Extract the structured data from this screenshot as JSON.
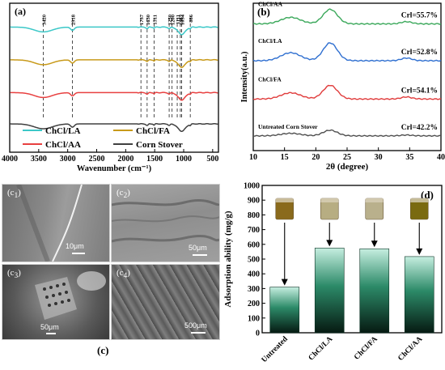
{
  "chart_data": [
    {
      "panel": "(a)",
      "type": "line",
      "xlabel": "Wavenumber (cm⁻¹)",
      "xlim": [
        4000,
        400
      ],
      "x_ticks": [
        "4000",
        "3500",
        "3000",
        "2500",
        "2000",
        "1500",
        "1000",
        "500"
      ],
      "peak_labels": [
        "3420",
        "2918",
        "1737",
        "1630",
        "1511",
        "1250",
        "1200",
        "1111",
        "1057",
        "1034",
        "886"
      ],
      "peak_positions": [
        3420,
        2918,
        1737,
        1630,
        1511,
        1250,
        1200,
        1111,
        1057,
        1034,
        886
      ],
      "series": [
        {
          "name": "ChCl/LA",
          "color": "#3cc8c8",
          "offset": 0.84
        },
        {
          "name": "ChCl/FA",
          "color": "#c89a1a",
          "offset": 0.62
        },
        {
          "name": "ChCl/AA",
          "color": "#e84040",
          "offset": 0.4
        },
        {
          "name": "Corn Stover",
          "color": "#404040",
          "offset": 0.19
        }
      ],
      "legend": "bottom"
    },
    {
      "panel": "(b)",
      "type": "line",
      "xlabel": "2θ (degree)",
      "ylabel": "Intensity(a.u.)",
      "xlim": [
        10,
        40
      ],
      "x_ticks": [
        "10",
        "15",
        "20",
        "25",
        "30",
        "35",
        "40"
      ],
      "series": [
        {
          "name": "ChCl/AA",
          "color": "#3aa85a",
          "crl": "Crl=55.7%",
          "offset": 0.86
        },
        {
          "name": "ChCl/LA",
          "color": "#2f6fd0",
          "crl": "Crl=52.8%",
          "offset": 0.61
        },
        {
          "name": "ChCl/FA",
          "color": "#e03b3b",
          "crl": "Crl=54.1%",
          "offset": 0.35
        },
        {
          "name": "Untreated Corn Stover",
          "color": "#505050",
          "crl": "Crl=42.2%",
          "offset": 0.1
        }
      ]
    },
    {
      "panel": "(d)",
      "type": "bar",
      "ylabel": "Adsorption ability (mg/g)",
      "ylim": [
        0,
        1000
      ],
      "y_ticks": [
        "0",
        "100",
        "200",
        "300",
        "400",
        "500",
        "600",
        "700",
        "800",
        "900",
        "1000"
      ],
      "categories": [
        "Untreated",
        "ChCl/LA",
        "ChCl/FA",
        "ChCl/AA"
      ],
      "values": [
        310,
        575,
        570,
        517
      ],
      "vial_colors": [
        "#8a6a1c",
        "#b7ad82",
        "#b9b08c",
        "#7a6a10"
      ]
    }
  ],
  "sem_images": [
    {
      "label_base": "c",
      "label_sub": "1",
      "scale": "10μm"
    },
    {
      "label_base": "c",
      "label_sub": "2",
      "scale": "50μm"
    },
    {
      "label_base": "c",
      "label_sub": "3",
      "scale": "50μm"
    },
    {
      "label_base": "c",
      "label_sub": "4",
      "scale": "500μm"
    }
  ],
  "panel_c_label": "(c)"
}
